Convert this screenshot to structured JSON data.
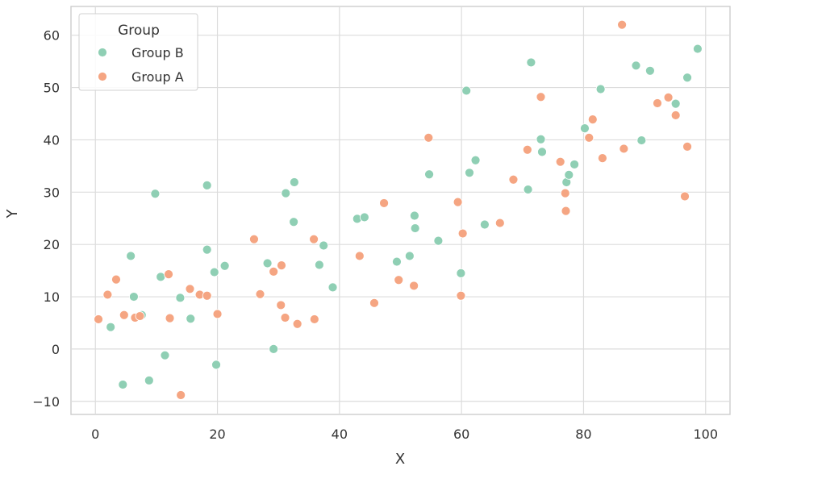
{
  "chart_data": {
    "type": "scatter",
    "title": "",
    "xlabel": "X",
    "ylabel": "Y",
    "xlim": [
      -4,
      104
    ],
    "ylim": [
      -12.5,
      65.5
    ],
    "x_ticks": [
      0,
      20,
      40,
      60,
      80,
      100
    ],
    "y_ticks": [
      -10,
      0,
      10,
      20,
      30,
      40,
      50,
      60
    ],
    "x_tick_labels": [
      "0",
      "20",
      "40",
      "60",
      "80",
      "100"
    ],
    "y_tick_labels": [
      "−10",
      "0",
      "10",
      "20",
      "30",
      "40",
      "50",
      "60"
    ],
    "grid": true,
    "legend": {
      "title": "Group",
      "placement": "top-left"
    },
    "series": [
      {
        "name": "Group B",
        "color": "#8fcfb4",
        "points": [
          [
            2.5,
            4.2
          ],
          [
            4.5,
            -6.8
          ],
          [
            5.8,
            17.8
          ],
          [
            6.3,
            10.0
          ],
          [
            7.6,
            6.5
          ],
          [
            8.8,
            -6.0
          ],
          [
            9.8,
            29.7
          ],
          [
            10.7,
            13.8
          ],
          [
            11.4,
            -1.2
          ],
          [
            13.9,
            9.8
          ],
          [
            15.6,
            5.8
          ],
          [
            18.3,
            31.3
          ],
          [
            18.3,
            19.0
          ],
          [
            19.5,
            14.7
          ],
          [
            19.8,
            -3.0
          ],
          [
            21.2,
            15.9
          ],
          [
            28.2,
            16.4
          ],
          [
            29.2,
            0.0
          ],
          [
            31.2,
            29.8
          ],
          [
            32.5,
            24.3
          ],
          [
            32.6,
            31.9
          ],
          [
            36.7,
            16.1
          ],
          [
            37.4,
            19.8
          ],
          [
            38.9,
            11.8
          ],
          [
            42.9,
            24.9
          ],
          [
            44.1,
            25.2
          ],
          [
            49.4,
            16.7
          ],
          [
            51.5,
            17.8
          ],
          [
            52.3,
            25.5
          ],
          [
            52.4,
            23.1
          ],
          [
            54.7,
            33.4
          ],
          [
            56.2,
            20.7
          ],
          [
            59.9,
            14.5
          ],
          [
            60.8,
            49.4
          ],
          [
            61.3,
            33.7
          ],
          [
            62.3,
            36.1
          ],
          [
            63.8,
            23.8
          ],
          [
            70.9,
            30.5
          ],
          [
            71.4,
            54.8
          ],
          [
            73.0,
            40.1
          ],
          [
            73.2,
            37.7
          ],
          [
            77.2,
            31.9
          ],
          [
            77.6,
            33.3
          ],
          [
            78.5,
            35.3
          ],
          [
            80.2,
            42.2
          ],
          [
            82.8,
            49.7
          ],
          [
            88.6,
            54.2
          ],
          [
            89.5,
            39.9
          ],
          [
            90.9,
            53.2
          ],
          [
            95.1,
            46.9
          ],
          [
            97.0,
            51.9
          ],
          [
            98.7,
            57.4
          ]
        ]
      },
      {
        "name": "Group A",
        "color": "#f5a582",
        "points": [
          [
            0.5,
            5.7
          ],
          [
            2.0,
            10.4
          ],
          [
            3.4,
            13.3
          ],
          [
            4.7,
            6.5
          ],
          [
            6.5,
            6.0
          ],
          [
            7.3,
            6.3
          ],
          [
            12.0,
            14.3
          ],
          [
            12.2,
            5.9
          ],
          [
            14.0,
            -8.8
          ],
          [
            15.5,
            11.5
          ],
          [
            17.1,
            10.4
          ],
          [
            18.3,
            10.2
          ],
          [
            20.0,
            6.7
          ],
          [
            26.0,
            21.0
          ],
          [
            27.0,
            10.5
          ],
          [
            29.2,
            14.8
          ],
          [
            30.4,
            8.4
          ],
          [
            30.5,
            16.0
          ],
          [
            31.1,
            6.0
          ],
          [
            33.1,
            4.8
          ],
          [
            35.8,
            21.0
          ],
          [
            35.9,
            5.7
          ],
          [
            43.3,
            17.8
          ],
          [
            45.7,
            8.8
          ],
          [
            47.3,
            27.9
          ],
          [
            49.7,
            13.2
          ],
          [
            52.2,
            12.1
          ],
          [
            54.6,
            40.4
          ],
          [
            59.4,
            28.1
          ],
          [
            59.9,
            10.2
          ],
          [
            60.2,
            22.1
          ],
          [
            66.3,
            24.1
          ],
          [
            68.5,
            32.4
          ],
          [
            70.8,
            38.1
          ],
          [
            73.0,
            48.2
          ],
          [
            76.2,
            35.8
          ],
          [
            77.0,
            29.8
          ],
          [
            77.1,
            26.4
          ],
          [
            80.9,
            40.4
          ],
          [
            81.5,
            43.9
          ],
          [
            83.1,
            36.5
          ],
          [
            86.3,
            62.0
          ],
          [
            86.6,
            38.3
          ],
          [
            92.1,
            47.0
          ],
          [
            93.9,
            48.1
          ],
          [
            95.1,
            44.7
          ],
          [
            96.6,
            29.2
          ],
          [
            97.0,
            38.7
          ]
        ]
      }
    ]
  }
}
